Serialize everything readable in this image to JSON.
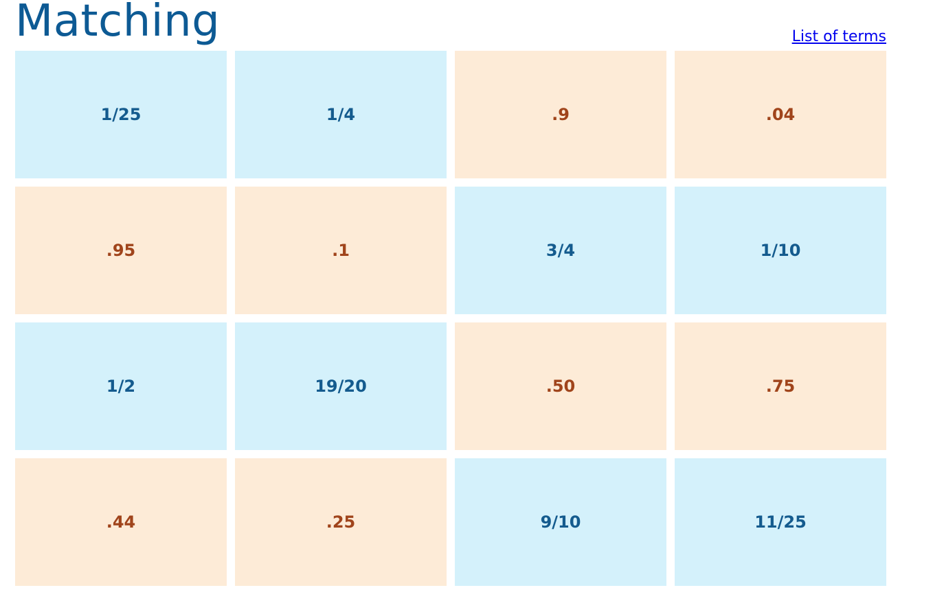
{
  "header": {
    "title": "Matching",
    "terms_link": "List of terms"
  },
  "colors": {
    "title": "#0d5a94",
    "link": "#0000ee",
    "card_blue_bg": "#d4f1fb",
    "card_blue_text": "#145b8e",
    "card_tan_bg": "#fdebd7",
    "card_tan_text": "#a0441b"
  },
  "cards": [
    {
      "label": "1/25",
      "style": "blue"
    },
    {
      "label": "1/4",
      "style": "blue"
    },
    {
      "label": ".9",
      "style": "tan"
    },
    {
      "label": ".04",
      "style": "tan"
    },
    {
      "label": ".95",
      "style": "tan"
    },
    {
      "label": ".1",
      "style": "tan"
    },
    {
      "label": "3/4",
      "style": "blue"
    },
    {
      "label": "1/10",
      "style": "blue"
    },
    {
      "label": "1/2",
      "style": "blue"
    },
    {
      "label": "19/20",
      "style": "blue"
    },
    {
      "label": ".50",
      "style": "tan"
    },
    {
      "label": ".75",
      "style": "tan"
    },
    {
      "label": ".44",
      "style": "tan"
    },
    {
      "label": ".25",
      "style": "tan"
    },
    {
      "label": "9/10",
      "style": "blue"
    },
    {
      "label": "11/25",
      "style": "blue"
    }
  ]
}
